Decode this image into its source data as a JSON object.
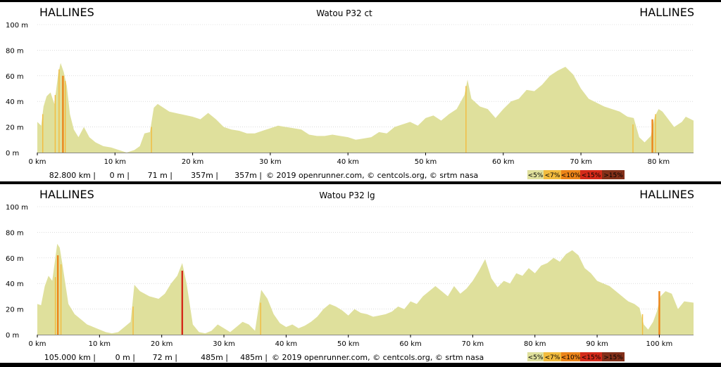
{
  "chart_data": [
    {
      "type": "area",
      "title": "Watou P32 ct",
      "start_label": "HALLINES",
      "end_label": "HALLINES",
      "x_unit": "km",
      "y_unit": "m",
      "xlim": [
        0,
        84.5
      ],
      "ylim": [
        0,
        100
      ],
      "x_ticks": [
        0,
        10,
        20,
        30,
        40,
        50,
        60,
        70,
        80
      ],
      "x_tick_labels": [
        "0 km",
        "10 km",
        "20 km",
        "30 km",
        "40 km",
        "50 km",
        "60 km",
        "70 km",
        "80 km"
      ],
      "y_ticks": [
        0,
        20,
        40,
        60,
        80,
        100
      ],
      "y_tick_labels": [
        "0 m",
        "20 m",
        "40 m",
        "60 m",
        "80 m",
        "100 m"
      ],
      "grid": true,
      "x": [
        0,
        0.5,
        0.8,
        1.2,
        1.7,
        2.2,
        2.7,
        3.0,
        3.4,
        3.8,
        4.2,
        4.7,
        5.3,
        6.0,
        6.7,
        7.5,
        8.5,
        9.5,
        10.5,
        11.5,
        12.5,
        13.2,
        13.8,
        14.5,
        15.0,
        15.5,
        17.0,
        18.5,
        20.0,
        21.0,
        22.0,
        23.0,
        24.0,
        25.0,
        26.0,
        27.0,
        28.0,
        29.0,
        30.0,
        31.0,
        32.0,
        33.0,
        34.0,
        35.0,
        36.0,
        37.0,
        38.0,
        39.0,
        40.0,
        41.0,
        42.0,
        43.0,
        44.0,
        45.0,
        46.0,
        47.0,
        48.0,
        49.0,
        50.0,
        51.0,
        52.0,
        53.0,
        54.0,
        55.0,
        55.4,
        55.9,
        57.0,
        58.0,
        59.0,
        60.0,
        61.0,
        62.0,
        63.0,
        64.0,
        65.0,
        66.0,
        67.0,
        68.0,
        69.0,
        70.0,
        71.0,
        72.0,
        73.0,
        74.0,
        75.0,
        76.0,
        76.8,
        77.5,
        78.2,
        79.0,
        79.5,
        80.0,
        80.5,
        81.0,
        82.0,
        83.0,
        83.5,
        84.5
      ],
      "y": [
        24,
        21,
        36,
        44,
        47,
        38,
        62,
        70,
        63,
        52,
        30,
        18,
        12,
        20,
        12,
        8,
        5,
        4,
        2,
        0,
        2,
        5,
        15,
        16,
        35,
        38,
        32,
        30,
        28,
        26,
        31,
        26,
        20,
        18,
        17,
        15,
        15,
        17,
        19,
        21,
        20,
        19,
        18,
        14,
        13,
        13,
        14,
        13,
        12,
        10,
        11,
        12,
        16,
        15,
        20,
        22,
        24,
        21,
        27,
        29,
        25,
        30,
        34,
        45,
        57,
        42,
        36,
        34,
        27,
        34,
        40,
        42,
        49,
        48,
        53,
        60,
        64,
        67,
        61,
        50,
        42,
        39,
        36,
        34,
        32,
        28,
        27,
        12,
        8,
        13,
        28,
        34,
        32,
        28,
        20,
        24,
        28,
        25
      ],
      "steep_markers": [
        [
          0.7,
          30,
          1
        ],
        [
          2.3,
          45,
          1
        ],
        [
          2.8,
          65,
          1
        ],
        [
          3.3,
          60,
          2
        ],
        [
          3.6,
          56,
          1
        ],
        [
          14.7,
          20,
          1
        ],
        [
          55.2,
          52,
          1
        ],
        [
          76.7,
          22,
          1
        ],
        [
          79.2,
          26,
          2
        ],
        [
          79.6,
          30,
          1
        ]
      ],
      "stats": {
        "distance": "82.800 km |",
        "min": "0 m |",
        "max": "71 m |",
        "climb": "357m |",
        "descent": "357m |",
        "credits": "© 2019 openrunner.com, © centcols.org, © srtm nasa"
      },
      "legend": [
        "<5%",
        "<7%",
        "<10%",
        "<15%",
        ">15%"
      ],
      "legend_colors": [
        "#dfe09c",
        "#f2bb3e",
        "#ec8419",
        "#d42a1a",
        "#83301a"
      ]
    },
    {
      "type": "area",
      "title": "Watou P32 lg",
      "start_label": "HALLINES",
      "end_label": "HALLINES",
      "x_unit": "km",
      "y_unit": "m",
      "xlim": [
        0,
        105.5
      ],
      "ylim": [
        0,
        100
      ],
      "x_ticks": [
        0,
        10,
        20,
        30,
        40,
        50,
        60,
        70,
        80,
        90,
        100
      ],
      "x_tick_labels": [
        "0 km",
        "10 km",
        "20 km",
        "30 km",
        "40 km",
        "50 km",
        "60 km",
        "70 km",
        "80 km",
        "90 km",
        "100 km"
      ],
      "y_ticks": [
        0,
        20,
        40,
        60,
        80,
        100
      ],
      "y_tick_labels": [
        "0 m",
        "20 m",
        "40 m",
        "60 m",
        "80 m",
        "100 m"
      ],
      "grid": true,
      "x": [
        0,
        0.6,
        1.2,
        1.8,
        2.4,
        2.9,
        3.2,
        3.6,
        4.0,
        4.5,
        5.0,
        6.0,
        7.0,
        8.0,
        9.0,
        10.0,
        11.0,
        12.0,
        13.0,
        14.0,
        15.0,
        15.6,
        16.5,
        18.0,
        19.5,
        20.5,
        21.5,
        22.5,
        23.3,
        24.0,
        25.0,
        26.0,
        27.0,
        28.0,
        29.0,
        30.0,
        31.0,
        32.0,
        33.0,
        34.0,
        35.0,
        36.0,
        37.0,
        38.0,
        39.0,
        40.0,
        41.0,
        42.0,
        43.0,
        44.0,
        45.0,
        46.0,
        47.0,
        48.0,
        49.0,
        50.0,
        51.0,
        52.0,
        53.0,
        54.0,
        55.0,
        56.0,
        57.0,
        58.0,
        59.0,
        60.0,
        61.0,
        62.0,
        63.0,
        64.0,
        65.0,
        66.0,
        67.0,
        68.0,
        69.0,
        70.0,
        71.0,
        72.0,
        73.0,
        74.0,
        75.0,
        76.0,
        77.0,
        78.0,
        79.0,
        80.0,
        81.0,
        82.0,
        83.0,
        84.0,
        85.0,
        86.0,
        87.0,
        88.0,
        89.0,
        90.0,
        91.0,
        92.0,
        93.0,
        94.0,
        95.0,
        96.0,
        96.8,
        97.5,
        98.2,
        99.0,
        99.6,
        100.2,
        101.0,
        102.0,
        103.0,
        104.0,
        105.5
      ],
      "y": [
        24,
        23,
        38,
        46,
        42,
        60,
        71,
        68,
        56,
        40,
        24,
        16,
        12,
        8,
        6,
        4,
        2,
        1,
        2,
        6,
        10,
        39,
        34,
        30,
        28,
        32,
        40,
        46,
        56,
        40,
        8,
        2,
        1,
        3,
        8,
        5,
        2,
        6,
        10,
        8,
        3,
        35,
        28,
        16,
        9,
        6,
        8,
        5,
        7,
        10,
        14,
        20,
        24,
        22,
        19,
        15,
        20,
        17,
        16,
        14,
        15,
        16,
        18,
        22,
        20,
        26,
        24,
        30,
        34,
        38,
        34,
        30,
        38,
        32,
        36,
        42,
        50,
        59,
        44,
        37,
        42,
        40,
        48,
        46,
        52,
        48,
        54,
        56,
        60,
        57,
        63,
        66,
        62,
        52,
        48,
        42,
        40,
        38,
        34,
        30,
        26,
        24,
        21,
        8,
        4,
        10,
        18,
        30,
        34,
        32,
        20,
        26,
        25
      ],
      "steep_markers": [
        [
          2.9,
          45,
          1
        ],
        [
          3.3,
          62,
          2
        ],
        [
          3.8,
          55,
          1
        ],
        [
          15.4,
          22,
          1
        ],
        [
          23.3,
          50,
          3
        ],
        [
          35.9,
          25,
          1
        ],
        [
          97.3,
          16,
          1
        ],
        [
          100.0,
          34,
          2
        ]
      ],
      "stats": {
        "distance": "105.000 km |",
        "min": "0 m |",
        "max": "72 m |",
        "climb": "485m |",
        "descent": "485m |",
        "credits": "© 2019 openrunner.com, © centcols.org, © srtm nasa"
      },
      "legend": [
        "<5%",
        "<7%",
        "<10%",
        "<15%",
        ">15%"
      ],
      "legend_colors": [
        "#dfe09c",
        "#f2bb3e",
        "#ec8419",
        "#d42a1a",
        "#83301a"
      ]
    }
  ],
  "colors": {
    "fill": "#dfe09c",
    "grid": "#c8c8c8",
    "axis": "#888888"
  }
}
